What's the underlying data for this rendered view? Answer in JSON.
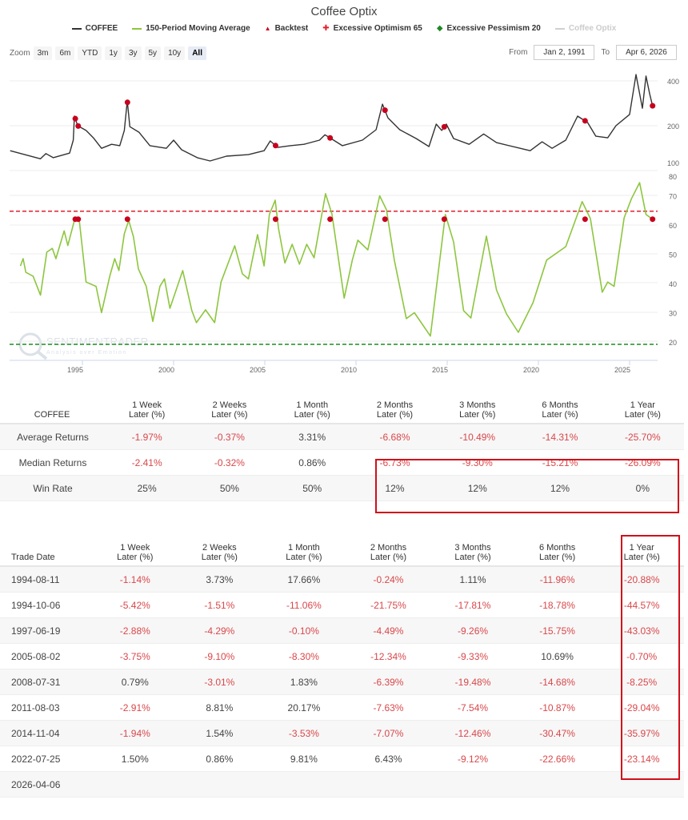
{
  "header": {
    "title": "Coffee Optix"
  },
  "legend": [
    {
      "label": "COFFEE",
      "color": "#333333",
      "marker": "line"
    },
    {
      "label": "150-Period Moving Average",
      "color": "#8dc63f",
      "marker": "line"
    },
    {
      "label": "Backtest",
      "color": "#c8001e",
      "marker": "triangle"
    },
    {
      "label": "Excessive Optimism 65",
      "color": "#e0202a",
      "marker": "dash-plus"
    },
    {
      "label": "Excessive Pessimism 20",
      "color": "#1e8a22",
      "marker": "dash-diamond"
    },
    {
      "label": "Coffee Optix",
      "color": "#d0d0d0",
      "marker": "line",
      "disabled": true
    }
  ],
  "zoom": {
    "label": "Zoom",
    "buttons": [
      "3m",
      "6m",
      "YTD",
      "1y",
      "3y",
      "5y",
      "10y",
      "All"
    ],
    "active": "All"
  },
  "range": {
    "from_label": "From",
    "from": "Jan 2, 1991",
    "to_label": "To",
    "to": "Apr 6, 2026"
  },
  "watermark": {
    "text": "SENTIMENTRADER",
    "sub": "Analysis over Emotion"
  },
  "chart_data": {
    "type": "line",
    "x_ticks": [
      "1995",
      "2000",
      "2005",
      "2010",
      "2015",
      "2020",
      "2025"
    ],
    "price_panel": {
      "scale": "log",
      "y_ticks": [
        "400",
        "200",
        "100"
      ],
      "series": {
        "name": "COFFEE",
        "color": "#333333",
        "x": [
          1991.04,
          1992.7,
          1993.0,
          1993.4,
          1994.3,
          1994.5,
          1994.56,
          1994.74,
          1995.2,
          1995.6,
          1996.05,
          1996.6,
          1997.05,
          1997.3,
          1997.46,
          1997.6,
          1998.1,
          1998.7,
          1999.6,
          2000.0,
          2000.44,
          2001.3,
          2002.0,
          2002.9,
          2004.1,
          2004.96,
          2005.3,
          2005.7,
          2006.4,
          2007.15,
          2008.0,
          2008.3,
          2008.7,
          2009.25,
          2010.35,
          2011.1,
          2011.45,
          2011.75,
          2012.4,
          2013.3,
          2014.0,
          2014.4,
          2014.7,
          2014.95,
          2015.35,
          2016.2,
          2017.0,
          2017.7,
          2019.0,
          2019.55,
          2020.2,
          2020.75,
          2021.5,
          2022.15,
          2022.7,
          2023.15,
          2023.8,
          2024.25,
          2025.0,
          2025.35,
          2025.7,
          2025.9,
          2026.1,
          2026.26
        ],
        "y": [
          136,
          120,
          130,
          122,
          131,
          160,
          232,
          200,
          186,
          166,
          141,
          150,
          147,
          186,
          294,
          197,
          181,
          147,
          141,
          160,
          138,
          122,
          116,
          125,
          128,
          136,
          158,
          143,
          147,
          150,
          160,
          174,
          162,
          147,
          160,
          188,
          279,
          226,
          188,
          164,
          145,
          205,
          186,
          205,
          164,
          150,
          176,
          154,
          141,
          136,
          156,
          141,
          160,
          232,
          210,
          170,
          166,
          200,
          238,
          441,
          262,
          431,
          327,
          272
        ]
      }
    },
    "optix_panel": {
      "y_ticks": [
        "80",
        "70",
        "60",
        "50",
        "40",
        "30",
        "20"
      ],
      "ylim": [
        20,
        80
      ],
      "series": {
        "name": "150-Period Moving Average",
        "color": "#8dc63f",
        "x": [
          1991.6,
          1991.75,
          1991.9,
          1992.3,
          1992.7,
          1993.05,
          1993.35,
          1993.55,
          1994.0,
          1994.2,
          1994.56,
          1994.83,
          1995.2,
          1995.75,
          1996.05,
          1996.5,
          1996.77,
          1997.0,
          1997.3,
          1997.54,
          1997.8,
          1998.07,
          1998.5,
          1998.86,
          1999.25,
          1999.5,
          1999.8,
          2000.5,
          2001.0,
          2001.25,
          2001.75,
          2002.25,
          2002.6,
          2003.35,
          2003.77,
          2004.1,
          2004.6,
          2004.96,
          2005.25,
          2005.57,
          2005.75,
          2006.1,
          2006.5,
          2006.9,
          2007.3,
          2007.7,
          2008.33,
          2008.68,
          2009.35,
          2009.8,
          2010.1,
          2010.65,
          2011.3,
          2011.67,
          2012.1,
          2012.76,
          2013.2,
          2014.08,
          2014.9,
          2015.35,
          2015.9,
          2016.3,
          2017.15,
          2017.7,
          2018.25,
          2018.9,
          2019.7,
          2020.45,
          2021.5,
          2022.4,
          2022.85,
          2023.5,
          2023.8,
          2024.15,
          2024.7,
          2025.1,
          2025.55,
          2025.9,
          2026.26
        ],
        "y": [
          46,
          48.5,
          43.8,
          42.5,
          36,
          50.7,
          52,
          48.5,
          58,
          53,
          61.6,
          61.6,
          40.5,
          39,
          30,
          42.5,
          48.5,
          44.4,
          57,
          61.6,
          56,
          45,
          39,
          27,
          39,
          41.6,
          31.5,
          44.4,
          30.7,
          26.6,
          31,
          26.6,
          40.5,
          52.9,
          43.3,
          41.6,
          56.7,
          46,
          63.6,
          68.5,
          58.9,
          47,
          53.4,
          46.6,
          53.4,
          48.8,
          70.7,
          63.8,
          35,
          48,
          54.8,
          51.5,
          70,
          65.2,
          48,
          28,
          30,
          22,
          63.6,
          54.2,
          30.7,
          28.2,
          56.2,
          37.8,
          29.6,
          23.3,
          33.4,
          48,
          52.6,
          68,
          62.2,
          37,
          40.5,
          39,
          62.5,
          69,
          74.5,
          63.6,
          62
        ]
      },
      "thresholds": [
        {
          "name": "Excessive Optimism 65",
          "value": 65,
          "color": "#e0202a"
        },
        {
          "name": "Excessive Pessimism 20",
          "value": 20,
          "color": "#1e8a22"
        }
      ]
    },
    "backtest_signals": {
      "name": "Backtest",
      "color": "#c8001e",
      "optix_value": 62,
      "dates": [
        1994.61,
        1994.77,
        1997.47,
        2005.59,
        2008.58,
        2011.59,
        2014.84,
        2022.56,
        2026.26
      ]
    }
  },
  "summary": {
    "columns": [
      "COFFEE",
      "1 Week\nLater (%)",
      "2 Weeks\nLater (%)",
      "1 Month\nLater (%)",
      "2 Months\nLater (%)",
      "3 Months\nLater (%)",
      "6 Months\nLater (%)",
      "1 Year\nLater (%)"
    ],
    "rows": [
      {
        "label": "Average Returns",
        "values": [
          "-1.97%",
          "-0.37%",
          "3.31%",
          "-6.68%",
          "-10.49%",
          "-14.31%",
          "-25.70%"
        ]
      },
      {
        "label": "Median Returns",
        "values": [
          "-2.41%",
          "-0.32%",
          "0.86%",
          "-6.73%",
          "-9.30%",
          "-15.21%",
          "-26.09%"
        ]
      },
      {
        "label": "Win Rate",
        "values": [
          "25%",
          "50%",
          "50%",
          "12%",
          "12%",
          "12%",
          "0%"
        ]
      }
    ]
  },
  "trades": {
    "columns": [
      "Trade Date",
      "1 Week\nLater (%)",
      "2 Weeks\nLater (%)",
      "1 Month\nLater (%)",
      "2 Months\nLater (%)",
      "3 Months\nLater (%)",
      "6 Months\nLater (%)",
      "1 Year\nLater (%)"
    ],
    "rows": [
      {
        "date": "1994-08-11",
        "values": [
          "-1.14%",
          "3.73%",
          "17.66%",
          "-0.24%",
          "1.11%",
          "-11.96%",
          "-20.88%"
        ]
      },
      {
        "date": "1994-10-06",
        "values": [
          "-5.42%",
          "-1.51%",
          "-11.06%",
          "-21.75%",
          "-17.81%",
          "-18.78%",
          "-44.57%"
        ]
      },
      {
        "date": "1997-06-19",
        "values": [
          "-2.88%",
          "-4.29%",
          "-0.10%",
          "-4.49%",
          "-9.26%",
          "-15.75%",
          "-43.03%"
        ]
      },
      {
        "date": "2005-08-02",
        "values": [
          "-3.75%",
          "-9.10%",
          "-8.30%",
          "-12.34%",
          "-9.33%",
          "10.69%",
          "-0.70%"
        ]
      },
      {
        "date": "2008-07-31",
        "values": [
          "0.79%",
          "-3.01%",
          "1.83%",
          "-6.39%",
          "-19.48%",
          "-14.68%",
          "-8.25%"
        ]
      },
      {
        "date": "2011-08-03",
        "values": [
          "-2.91%",
          "8.81%",
          "20.17%",
          "-7.63%",
          "-7.54%",
          "-10.87%",
          "-29.04%"
        ]
      },
      {
        "date": "2014-11-04",
        "values": [
          "-1.94%",
          "1.54%",
          "-3.53%",
          "-7.07%",
          "-12.46%",
          "-30.47%",
          "-35.97%"
        ]
      },
      {
        "date": "2022-07-25",
        "values": [
          "1.50%",
          "0.86%",
          "9.81%",
          "6.43%",
          "-9.12%",
          "-22.66%",
          "-23.14%"
        ]
      },
      {
        "date": "2026-04-06",
        "values": [
          "",
          "",
          "",
          "",
          "",
          "",
          ""
        ]
      }
    ]
  },
  "highlight_color": "#d0101a"
}
